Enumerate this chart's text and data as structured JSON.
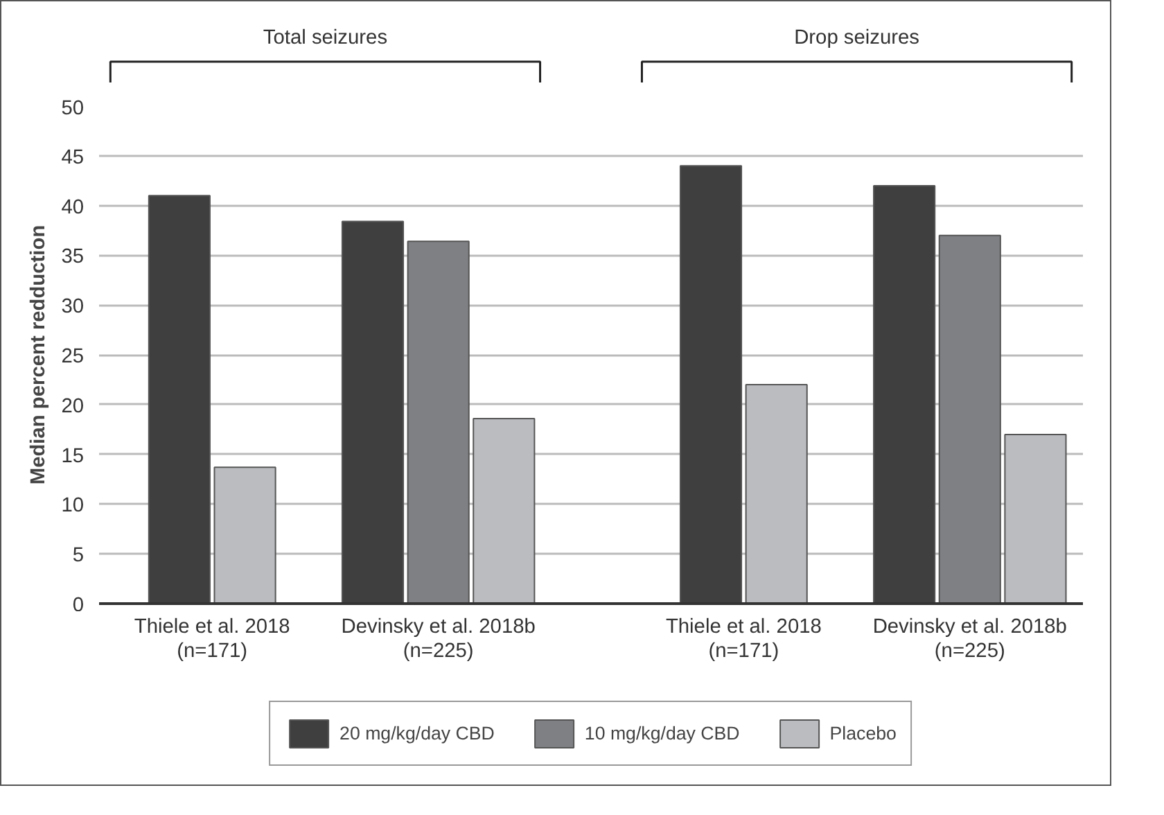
{
  "chart_data": {
    "type": "bar",
    "ylabel": "Median percent redduction",
    "categories": [
      "Thiele et al. 2018\n(n=171)",
      "Devinsky et al. 2018b\n(n=225)",
      "Thiele et al. 2018\n(n=171)",
      "Devinsky et al. 2018b\n(n=225)"
    ],
    "series": [
      {
        "name": "20 mg/kg/day CBD",
        "color": "#3f3f3f",
        "values": [
          41,
          38.4,
          44,
          42
        ]
      },
      {
        "name": "10 mg/kg/day CBD",
        "color": "#7f8084",
        "values": [
          null,
          36.4,
          null,
          37
        ]
      },
      {
        "name": "Placebo",
        "color": "#bbbcc0",
        "values": [
          13.7,
          18.6,
          22,
          17
        ]
      }
    ],
    "annotations": [
      "Total seizures",
      "Drop seizures"
    ],
    "ylim": [
      0,
      50
    ],
    "yticks": [
      0,
      5,
      10,
      15,
      20,
      25,
      30,
      35,
      40,
      45,
      50
    ],
    "grid": "y",
    "legend": "bottom"
  }
}
